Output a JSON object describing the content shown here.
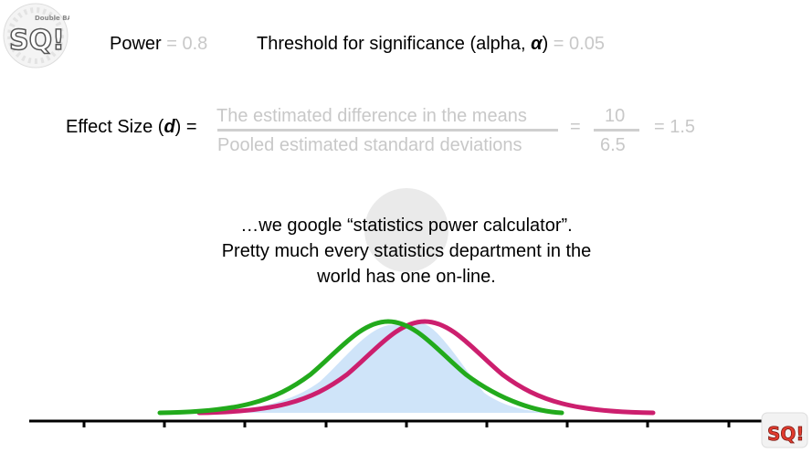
{
  "power": {
    "label": "Power",
    "value": "= 0.8"
  },
  "threshold": {
    "label_pre": "Threshold for significance (alpha, ",
    "symbol": "α",
    "label_post": ")",
    "value": "= 0.05"
  },
  "effect_size": {
    "label_pre": "Effect Size (",
    "symbol": "d",
    "label_post": ") =",
    "numerator": "The estimated difference in the means",
    "denominator": "Pooled estimated standard deviations",
    "eq1": "=",
    "num_value": "10",
    "den_value": "6.5",
    "result": "= 1.5"
  },
  "caption": {
    "line1": "…we google “statistics power calculator”.",
    "line2": "Pretty much every statistics department in the",
    "line3": "world has one on-line."
  },
  "logo": {
    "text": "SQ!",
    "top_text": "Double BAM!!"
  },
  "colors": {
    "green": "#22aa1c",
    "magenta": "#cc1f6e",
    "overlap": "#cfe4f9",
    "grey_text": "#c8c8c8"
  }
}
